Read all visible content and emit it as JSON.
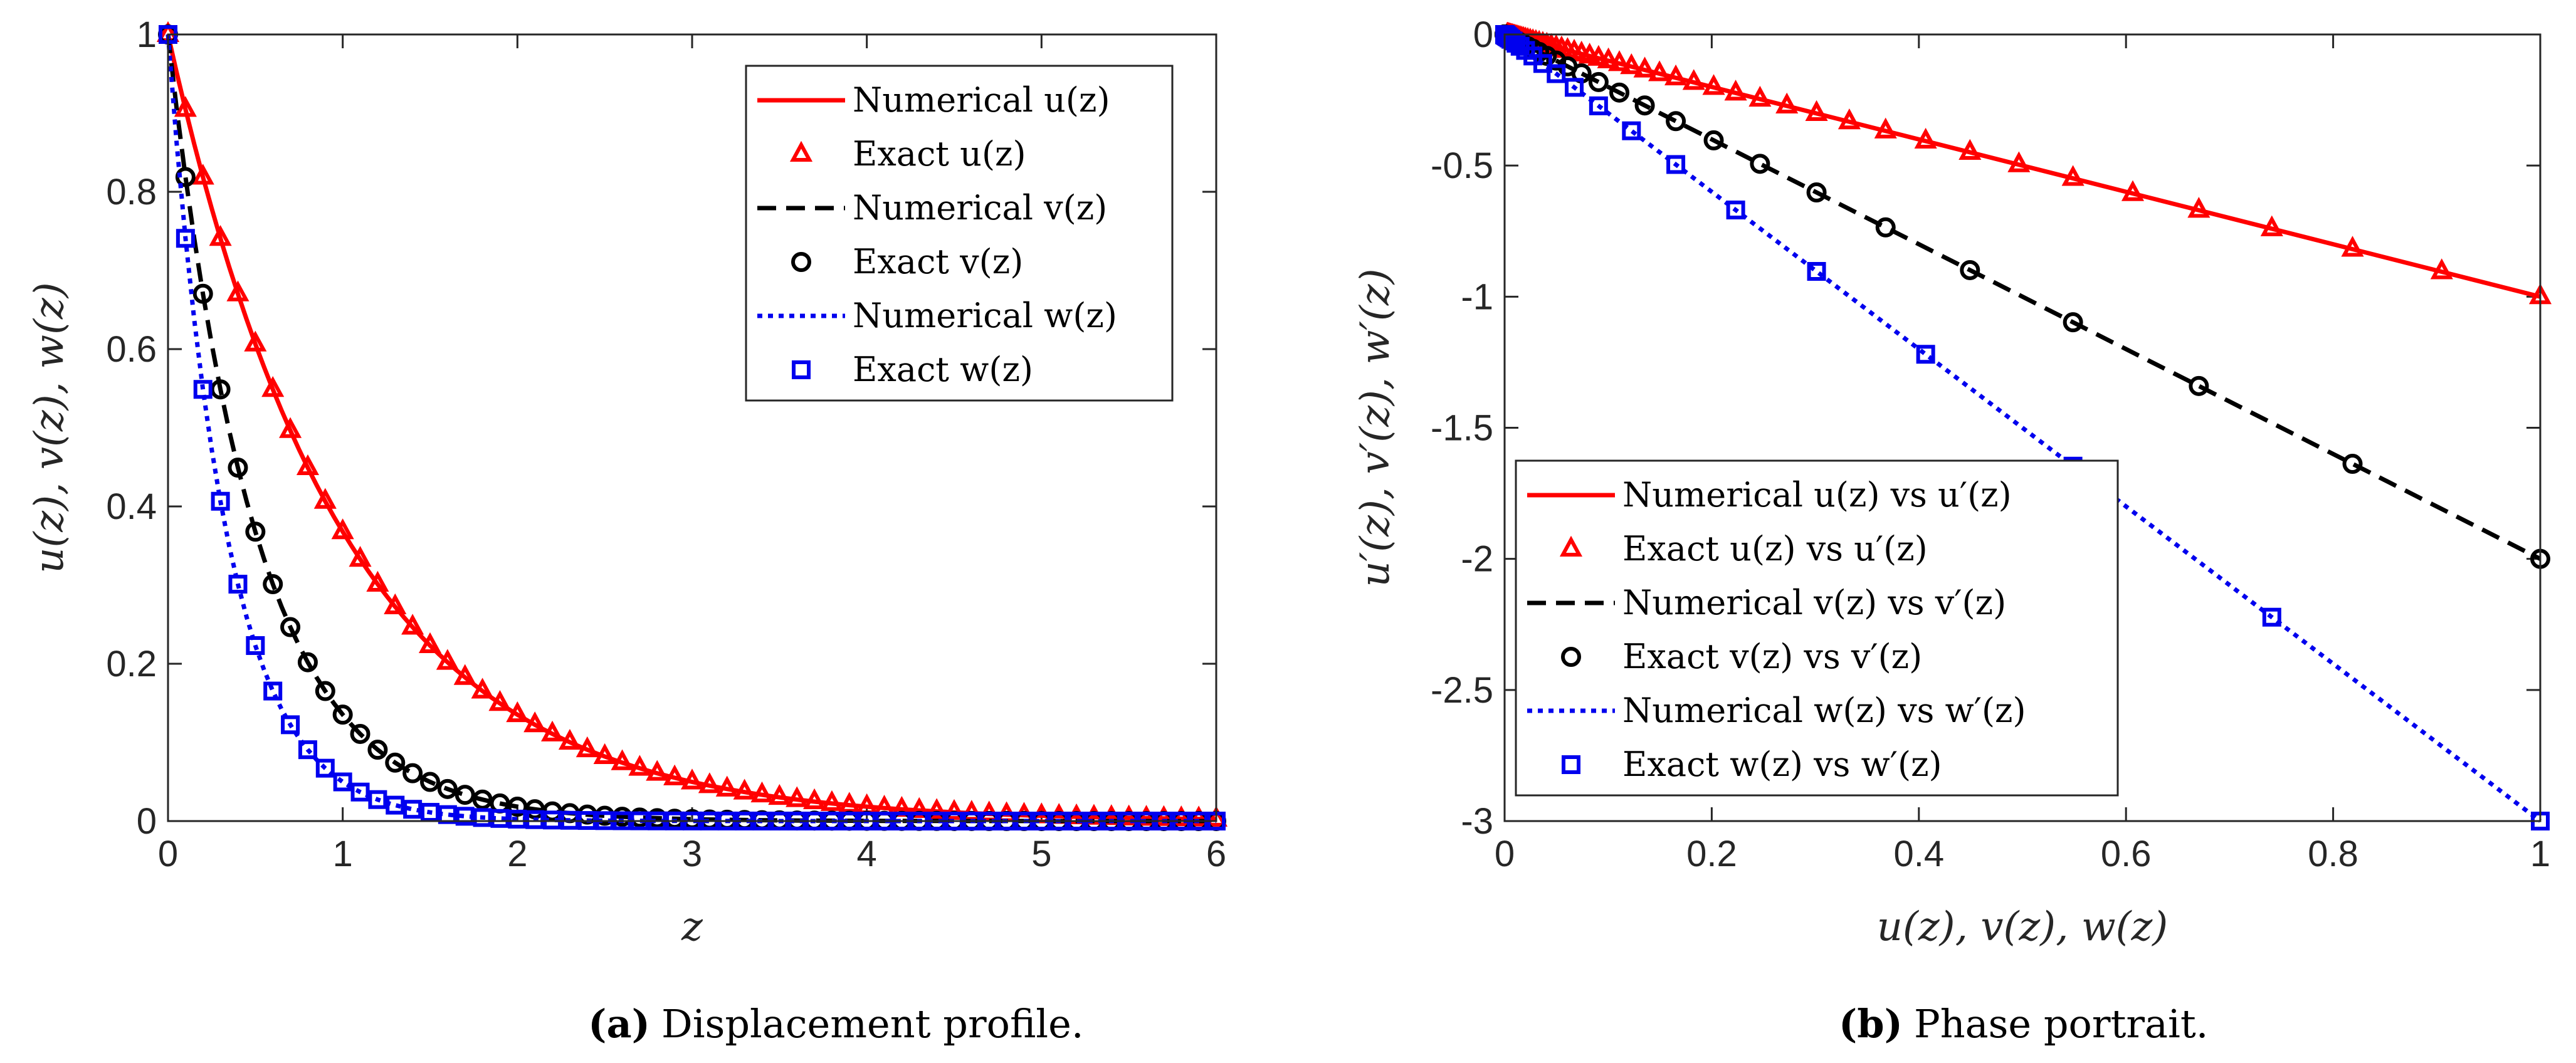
{
  "colors": {
    "u": "#ff0000",
    "v": "#000000",
    "w": "#0000ee",
    "axis": "#262626"
  },
  "chart_data": [
    {
      "type": "line",
      "id": "a",
      "title": "",
      "caption_label": "(a)",
      "caption_text": "Displacement profile.",
      "xlabel": "z",
      "ylabel": "u(z), v(z), w(z)",
      "xlim": [
        0,
        6
      ],
      "ylim": [
        0,
        1
      ],
      "xticks": [
        0,
        1,
        2,
        3,
        4,
        5,
        6
      ],
      "xtick_labels": [
        "0",
        "1",
        "2",
        "3",
        "4",
        "5",
        "6"
      ],
      "yticks": [
        0,
        0.2,
        0.4,
        0.6,
        0.8,
        1
      ],
      "ytick_labels": [
        "0",
        "0.2",
        "0.4",
        "0.6",
        "0.8",
        "1"
      ],
      "legend_position": "top-right",
      "functions": {
        "u": "exp(-z)",
        "v": "exp(-2z)",
        "w": "exp(-3z)"
      },
      "series": [
        {
          "name": "Numerical u(z)",
          "key": "u",
          "kind": "line",
          "dash": "solid",
          "x_range": [
            0,
            6
          ],
          "points": 121
        },
        {
          "name": "Exact u(z)",
          "key": "u",
          "kind": "marker",
          "marker": "triangle",
          "x_range": [
            0,
            6
          ],
          "step": 0.1
        },
        {
          "name": "Numerical v(z)",
          "key": "v",
          "kind": "line",
          "dash": "dashed",
          "x_range": [
            0,
            6
          ],
          "points": 121
        },
        {
          "name": "Exact v(z)",
          "key": "v",
          "kind": "marker",
          "marker": "circle",
          "x_range": [
            0,
            6
          ],
          "step": 0.1
        },
        {
          "name": "Numerical w(z)",
          "key": "w",
          "kind": "line",
          "dash": "dotted",
          "x_range": [
            0,
            6
          ],
          "points": 121
        },
        {
          "name": "Exact w(z)",
          "key": "w",
          "kind": "marker",
          "marker": "square",
          "x_range": [
            0,
            6
          ],
          "step": 0.1
        }
      ],
      "legend": [
        {
          "label": "Numerical u(z)",
          "key": "u",
          "kind": "line",
          "dash": "solid"
        },
        {
          "label": "Exact u(z)",
          "key": "u",
          "kind": "marker",
          "marker": "triangle"
        },
        {
          "label": "Numerical v(z)",
          "key": "v",
          "kind": "line",
          "dash": "dashed"
        },
        {
          "label": "Exact v(z)",
          "key": "v",
          "kind": "marker",
          "marker": "circle"
        },
        {
          "label": "Numerical w(z)",
          "key": "w",
          "kind": "line",
          "dash": "dotted"
        },
        {
          "label": "Exact w(z)",
          "key": "w",
          "kind": "marker",
          "marker": "square"
        }
      ]
    },
    {
      "type": "line",
      "id": "b",
      "title": "",
      "caption_label": "(b)",
      "caption_text": "Phase portrait.",
      "xlabel": "u(z), v(z), w(z)",
      "ylabel": "u′(z), v′(z), w′(z)",
      "xlim": [
        0,
        1
      ],
      "ylim": [
        -3,
        0
      ],
      "xticks": [
        0,
        0.2,
        0.4,
        0.6,
        0.8,
        1
      ],
      "xtick_labels": [
        "0",
        "0.2",
        "0.4",
        "0.6",
        "0.8",
        "1"
      ],
      "yticks": [
        -3,
        -2.5,
        -2,
        -1.5,
        -1,
        -0.5,
        0
      ],
      "ytick_labels": [
        "-3",
        "-2.5",
        "-2",
        "-1.5",
        "-1",
        "-0.5",
        "0"
      ],
      "legend_position": "bottom-left",
      "slopes": {
        "u": -1,
        "v": -2,
        "w": -3
      },
      "series": [
        {
          "name": "Numerical u(z) vs u′(z)",
          "key": "u",
          "kind": "line",
          "dash": "solid",
          "x_range": [
            0,
            1
          ]
        },
        {
          "name": "Exact u(z) vs u′(z)",
          "key": "u",
          "kind": "marker",
          "marker": "triangle",
          "z_step": 0.1
        },
        {
          "name": "Numerical v(z) vs v′(z)",
          "key": "v",
          "kind": "line",
          "dash": "dashed",
          "x_range": [
            0,
            1
          ]
        },
        {
          "name": "Exact v(z) vs v′(z)",
          "key": "v",
          "kind": "marker",
          "marker": "circle",
          "z_step": 0.1
        },
        {
          "name": "Numerical w(z) vs w′(z)",
          "key": "w",
          "kind": "line",
          "dash": "dotted",
          "x_range": [
            0,
            1
          ]
        },
        {
          "name": "Exact w(z) vs w′(z)",
          "key": "w",
          "kind": "marker",
          "marker": "square",
          "z_step": 0.1
        }
      ],
      "legend": [
        {
          "label": "Numerical u(z) vs u′(z)",
          "key": "u",
          "kind": "line",
          "dash": "solid"
        },
        {
          "label": "Exact u(z) vs u′(z)",
          "key": "u",
          "kind": "marker",
          "marker": "triangle"
        },
        {
          "label": "Numerical v(z) vs v′(z)",
          "key": "v",
          "kind": "line",
          "dash": "dashed"
        },
        {
          "label": "Exact v(z) vs v′(z)",
          "key": "v",
          "kind": "marker",
          "marker": "circle"
        },
        {
          "label": "Numerical w(z) vs w′(z)",
          "key": "w",
          "kind": "line",
          "dash": "dotted"
        },
        {
          "label": "Exact w(z) vs w′(z)",
          "key": "w",
          "kind": "marker",
          "marker": "square"
        }
      ]
    }
  ]
}
